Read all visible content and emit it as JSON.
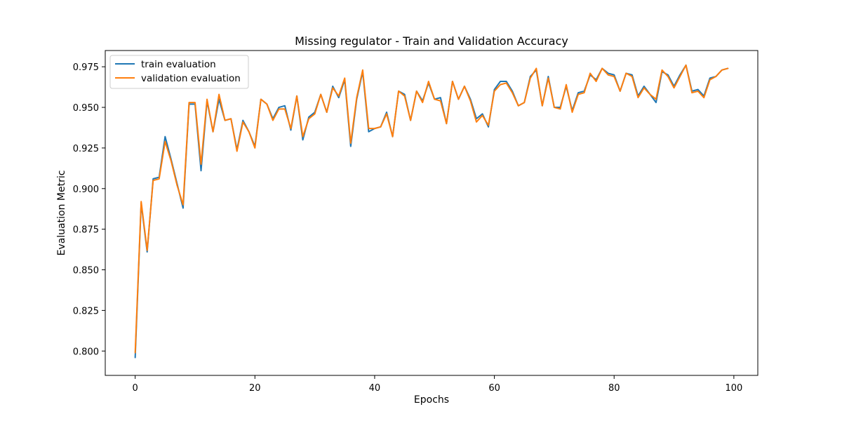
{
  "chart_data": {
    "type": "line",
    "title": "Missing regulator - Train and Validation Accuracy",
    "xlabel": "Epochs",
    "ylabel": "Evaluation Metric",
    "xlim": [
      -5,
      104
    ],
    "ylim": [
      0.785,
      0.985
    ],
    "xticks": [
      0,
      20,
      40,
      60,
      80,
      100
    ],
    "yticks": [
      0.8,
      0.825,
      0.85,
      0.875,
      0.9,
      0.925,
      0.95,
      0.975
    ],
    "ytick_labels": [
      "0.800",
      "0.825",
      "0.850",
      "0.875",
      "0.900",
      "0.925",
      "0.950",
      "0.975"
    ],
    "grid": false,
    "legend_position": "top-left",
    "series": [
      {
        "name": "train evaluation",
        "color": "#1f77b4",
        "values": [
          0.796,
          0.891,
          0.861,
          0.906,
          0.907,
          0.932,
          0.918,
          0.903,
          0.888,
          0.952,
          0.952,
          0.911,
          0.954,
          0.935,
          0.955,
          0.942,
          0.943,
          0.924,
          0.942,
          0.935,
          0.926,
          0.955,
          0.952,
          0.943,
          0.95,
          0.951,
          0.936,
          0.957,
          0.93,
          0.944,
          0.947,
          0.958,
          0.947,
          0.963,
          0.956,
          0.967,
          0.926,
          0.955,
          0.972,
          0.935,
          0.937,
          0.938,
          0.947,
          0.932,
          0.96,
          0.958,
          0.942,
          0.96,
          0.954,
          0.965,
          0.955,
          0.956,
          0.94,
          0.966,
          0.955,
          0.963,
          0.955,
          0.943,
          0.946,
          0.938,
          0.961,
          0.966,
          0.966,
          0.96,
          0.951,
          0.953,
          0.969,
          0.973,
          0.951,
          0.969,
          0.95,
          0.95,
          0.963,
          0.948,
          0.959,
          0.96,
          0.97,
          0.967,
          0.974,
          0.971,
          0.97,
          0.96,
          0.971,
          0.97,
          0.957,
          0.963,
          0.958,
          0.953,
          0.972,
          0.97,
          0.963,
          0.97,
          0.976,
          0.96,
          0.961,
          0.957,
          0.968,
          0.969,
          0.973,
          0.974
        ]
      },
      {
        "name": "validation evaluation",
        "color": "#ff7f0e",
        "values": [
          0.799,
          0.892,
          0.862,
          0.905,
          0.906,
          0.929,
          0.917,
          0.902,
          0.89,
          0.953,
          0.953,
          0.915,
          0.955,
          0.935,
          0.958,
          0.942,
          0.943,
          0.923,
          0.941,
          0.935,
          0.925,
          0.955,
          0.952,
          0.942,
          0.949,
          0.949,
          0.937,
          0.957,
          0.932,
          0.943,
          0.946,
          0.958,
          0.947,
          0.962,
          0.957,
          0.968,
          0.928,
          0.956,
          0.973,
          0.937,
          0.937,
          0.938,
          0.946,
          0.932,
          0.96,
          0.957,
          0.942,
          0.96,
          0.953,
          0.966,
          0.955,
          0.954,
          0.94,
          0.966,
          0.955,
          0.963,
          0.954,
          0.941,
          0.945,
          0.939,
          0.96,
          0.964,
          0.965,
          0.959,
          0.951,
          0.953,
          0.968,
          0.974,
          0.951,
          0.968,
          0.95,
          0.949,
          0.964,
          0.947,
          0.958,
          0.959,
          0.971,
          0.966,
          0.974,
          0.97,
          0.969,
          0.96,
          0.971,
          0.969,
          0.956,
          0.962,
          0.958,
          0.955,
          0.973,
          0.969,
          0.962,
          0.969,
          0.976,
          0.959,
          0.96,
          0.956,
          0.967,
          0.969,
          0.973,
          0.974
        ]
      }
    ]
  }
}
